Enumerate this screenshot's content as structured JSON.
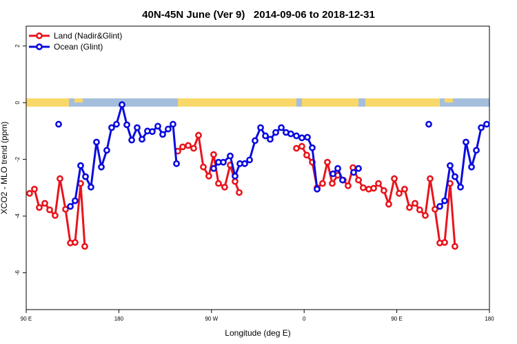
{
  "chart_data": {
    "type": "line",
    "title": "40N-45N June (Ver 9)   2014-09-06 to 2018-12-31",
    "xlabel": "Longitude (deg E)",
    "ylabel": "XCO2 - MLO trend (ppm)",
    "xlim": [
      90,
      540
    ],
    "ylim": [
      -7.3,
      2.7
    ],
    "xticks": [
      {
        "value": 90,
        "label": "90 E"
      },
      {
        "value": 180,
        "label": "180"
      },
      {
        "value": 270,
        "label": "90 W"
      },
      {
        "value": 360,
        "label": "0"
      },
      {
        "value": 450,
        "label": "90 E"
      },
      {
        "value": 540,
        "label": "180"
      }
    ],
    "yticks": [
      -6,
      -4,
      -2,
      0,
      2
    ],
    "legend": "top-left",
    "series": [
      {
        "name": "Land (Nadir&Glint)",
        "color": "#e8141c",
        "x": [
          93.3,
          98.0,
          102.7,
          108.1,
          112.8,
          118.1,
          122.8,
          128.2,
          132.9,
          137.5,
          142.9,
          146.9,
          null,
          237.3,
          242.0,
          247.4,
          252.7,
          257.4,
          262.1,
          267.4,
          272.1,
          276.8,
          282.8,
          288.2,
          292.9,
          296.9,
          null,
          352.5,
          357.8,
          362.5,
          367.9,
          372.6,
          377.9,
          382.6,
          387.3,
          392.7,
          398.0,
          402.7,
          407.4,
          412.8,
          417.4,
          422.8,
          427.5,
          432.2,
          437.5,
          442.2,
          447.6,
          452.3,
          457.6,
          462.3,
          467.7,
          472.3,
          477.7,
          482.4,
          487.1,
          491.8,
          496.5,
          501.8,
          506.5
        ],
        "values": [
          -3.2,
          -3.05,
          -3.7,
          -3.55,
          -3.78,
          -3.98,
          -2.68,
          -3.76,
          -4.95,
          -4.93,
          -2.85,
          -5.07,
          null,
          -1.71,
          -1.56,
          -1.51,
          -1.61,
          -1.15,
          -2.27,
          -2.59,
          -1.83,
          -2.85,
          -2.98,
          -2.2,
          -2.78,
          -3.17,
          null,
          -1.61,
          -1.54,
          -1.85,
          -2.1,
          -3.0,
          -2.85,
          -2.1,
          -2.85,
          -2.56,
          -2.73,
          -2.93,
          -2.29,
          -2.73,
          -3.0,
          -3.05,
          -3.02,
          -2.85,
          -3.1,
          -3.58,
          -2.68,
          -3.2,
          -3.05,
          -3.7,
          -3.55,
          -3.78,
          -3.98,
          -2.68,
          -3.76,
          -4.95,
          -4.93,
          -2.85,
          -5.07
        ]
      },
      {
        "name": "Ocean (Glint)",
        "color": "#0a0ae0",
        "x": [
          121.5,
          null,
          132.9,
          137.5,
          142.9,
          147.6,
          152.9,
          158.3,
          163.0,
          168.3,
          173.0,
          177.7,
          183.1,
          187.8,
          192.5,
          197.8,
          202.5,
          207.8,
          212.5,
          217.9,
          222.6,
          227.9,
          232.6,
          236.0,
          null,
          272.1,
          276.8,
          281.5,
          288.2,
          292.9,
          297.6,
          302.3,
          307.0,
          312.3,
          317.7,
          322.4,
          327.0,
          332.4,
          337.8,
          342.4,
          347.1,
          352.5,
          357.8,
          363.2,
          367.9,
          372.6,
          null,
          388.0,
          392.7,
          397.3,
          null,
          408.1,
          412.8,
          null,
          481.1,
          null,
          491.8,
          496.5,
          501.8,
          506.5,
          511.9,
          517.2,
          522.6,
          527.3,
          532.0,
          537.3
        ],
        "values": [
          -0.76,
          null,
          -3.66,
          -3.46,
          -2.22,
          -2.61,
          -2.98,
          -1.39,
          -2.27,
          -1.68,
          -0.88,
          -0.76,
          -0.07,
          -0.78,
          -1.32,
          -0.88,
          -1.29,
          -1.0,
          -1.02,
          -0.83,
          -1.12,
          -0.93,
          -0.76,
          -2.15,
          null,
          -2.32,
          -2.1,
          -2.1,
          -1.88,
          -2.59,
          -2.15,
          -2.15,
          -2.02,
          -1.34,
          -0.88,
          -1.17,
          -1.29,
          -1.05,
          -0.88,
          -1.05,
          -1.1,
          -1.17,
          -1.24,
          -1.22,
          -1.59,
          -3.05,
          null,
          -2.51,
          -2.32,
          -2.73,
          null,
          -2.46,
          -2.32,
          null,
          -0.76,
          null,
          -3.66,
          -3.46,
          -2.22,
          -2.61,
          -2.98,
          -1.39,
          -2.27,
          -1.68,
          -0.88,
          -0.76
        ]
      }
    ]
  }
}
